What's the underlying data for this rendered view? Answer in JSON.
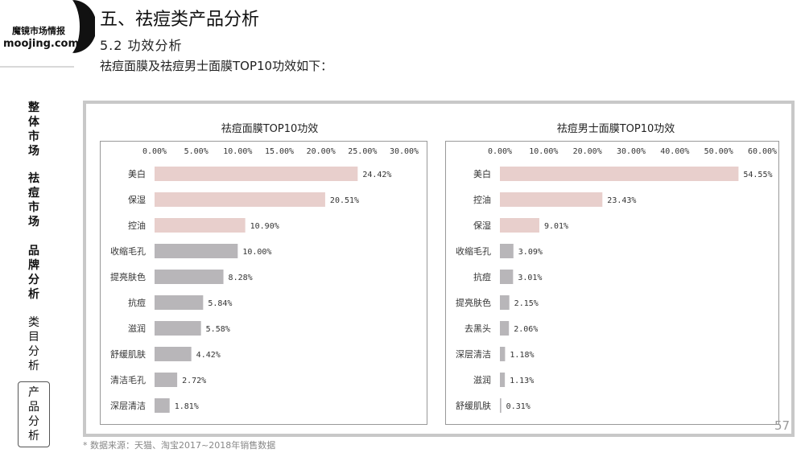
{
  "logo": {
    "cn": "魔镜市场情报",
    "en": "moojing.com"
  },
  "nav": [
    {
      "label": [
        "整",
        "体",
        "市",
        "场"
      ]
    },
    {
      "label": [
        "祛",
        "痘",
        "市",
        "场"
      ]
    },
    {
      "label": [
        "品",
        "牌",
        "分",
        "析"
      ]
    },
    {
      "label": [
        "类",
        "目",
        "分",
        "析"
      ]
    },
    {
      "label": [
        "产",
        "品",
        "分",
        "析"
      ]
    }
  ],
  "header": {
    "title": "五、祛痘类产品分析",
    "subtitle": "5.2 功效分析",
    "desc": "祛痘面膜及祛痘男士面膜TOP10功效如下："
  },
  "footnote": "* 数据来源：天猫、淘宝2017~2018年销售数据",
  "page_number": "57",
  "colors": {
    "pink": "#e8cfcc",
    "gray": "#b8b6b9"
  },
  "chart_data": [
    {
      "type": "bar",
      "orientation": "horizontal",
      "title": "祛痘面膜TOP10功效",
      "categories": [
        "美白",
        "保湿",
        "控油",
        "收缩毛孔",
        "提亮肤色",
        "抗痘",
        "滋润",
        "舒缓肌肤",
        "清洁毛孔",
        "深层清洁"
      ],
      "values": [
        24.42,
        20.51,
        10.9,
        10.0,
        8.28,
        5.84,
        5.58,
        4.42,
        2.72,
        1.81
      ],
      "labels": [
        "24.42%",
        "20.51%",
        "10.90%",
        "10.00%",
        "8.28%",
        "5.84%",
        "5.58%",
        "4.42%",
        "2.72%",
        "1.81%"
      ],
      "bar_colors": [
        "pink",
        "pink",
        "pink",
        "gray",
        "gray",
        "gray",
        "gray",
        "gray",
        "gray",
        "gray"
      ],
      "xlim": [
        0,
        30
      ],
      "ticks": [
        "0.00%",
        "5.00%",
        "10.00%",
        "15.00%",
        "20.00%",
        "25.00%",
        "30.00%"
      ],
      "tick_values": [
        0,
        5,
        10,
        15,
        20,
        25,
        30
      ]
    },
    {
      "type": "bar",
      "orientation": "horizontal",
      "title": "祛痘男士面膜TOP10功效",
      "categories": [
        "美白",
        "控油",
        "保湿",
        "收缩毛孔",
        "抗痘",
        "提亮肤色",
        "去黑头",
        "深层清洁",
        "滋润",
        "舒缓肌肤"
      ],
      "values": [
        54.55,
        23.43,
        9.01,
        3.09,
        3.01,
        2.15,
        2.06,
        1.18,
        1.13,
        0.31
      ],
      "labels": [
        "54.55%",
        "23.43%",
        "9.01%",
        "3.09%",
        "3.01%",
        "2.15%",
        "2.06%",
        "1.18%",
        "1.13%",
        "0.31%"
      ],
      "bar_colors": [
        "pink",
        "pink",
        "pink",
        "gray",
        "gray",
        "gray",
        "gray",
        "gray",
        "gray",
        "gray"
      ],
      "xlim": [
        0,
        60
      ],
      "ticks": [
        "0.00%",
        "10.00%",
        "20.00%",
        "30.00%",
        "40.00%",
        "50.00%",
        "60.00%"
      ],
      "tick_values": [
        0,
        10,
        20,
        30,
        40,
        50,
        60
      ]
    }
  ]
}
